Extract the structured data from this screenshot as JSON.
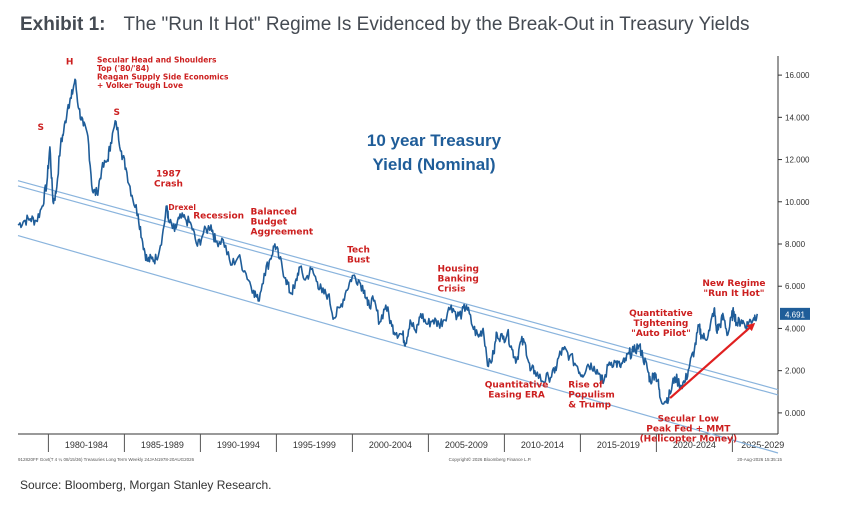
{
  "header": {
    "exhibit_label": "Exhibit 1:",
    "title": "The \"Run It Hot\" Regime Is Evidenced by the Break-Out in Treasury Yields"
  },
  "source_note": "Source: Bloomberg, Morgan Stanley Research.",
  "colors": {
    "series": "#1f5d99",
    "channel": "#8ab4dd",
    "annotation": "#cc1f1f",
    "arrow": "#e02020",
    "inner_title": "#1f5d99",
    "badge": "#1f5d99"
  },
  "chart_data": {
    "type": "line",
    "title": "10 year Treasury Yield (Nominal)",
    "title_lines": [
      "10 year Treasury",
      "Yield (Nominal)"
    ],
    "xlim": [
      1978.0,
      2028.0
    ],
    "ylim": [
      -1.0,
      17.0
    ],
    "y_ticks": [
      0,
      2,
      4,
      6,
      8,
      10,
      12,
      14,
      16
    ],
    "y_tick_labels": [
      "0.000",
      "2.000",
      "4.000",
      "6.000",
      "8.000",
      "10.000",
      "12.000",
      "14.000",
      "16.000"
    ],
    "x_tick_labels": [
      "1980-1984",
      "1985-1989",
      "1990-1994",
      "1995-1999",
      "2000-2004",
      "2005-2009",
      "2010-2014",
      "2015-2019",
      "2020-2024",
      "2025-2029"
    ],
    "x_tick_centers": [
      1982.5,
      1987.5,
      1992.5,
      1997.5,
      2002.5,
      2007.5,
      2012.5,
      2017.5,
      2022.5,
      2027.0
    ],
    "x_period_bounds": [
      1980,
      1985,
      1990,
      1995,
      2000,
      2005,
      2010,
      2015,
      2020,
      2025
    ],
    "last_value": 4.691,
    "last_value_label": "4.691",
    "series": [
      {
        "points": [
          [
            1978.0,
            8.9
          ],
          [
            1978.4,
            9.1
          ],
          [
            1978.8,
            9.2
          ],
          [
            1979.2,
            9.1
          ],
          [
            1979.6,
            9.8
          ],
          [
            1979.9,
            10.9
          ],
          [
            1980.1,
            12.6
          ],
          [
            1980.3,
            10.0
          ],
          [
            1980.5,
            10.4
          ],
          [
            1980.8,
            12.7
          ],
          [
            1981.0,
            13.3
          ],
          [
            1981.3,
            14.6
          ],
          [
            1981.5,
            14.9
          ],
          [
            1981.75,
            15.8
          ],
          [
            1982.0,
            14.4
          ],
          [
            1982.3,
            13.6
          ],
          [
            1982.6,
            13.1
          ],
          [
            1982.9,
            10.5
          ],
          [
            1983.2,
            10.4
          ],
          [
            1983.5,
            11.5
          ],
          [
            1983.9,
            12.0
          ],
          [
            1984.1,
            12.8
          ],
          [
            1984.45,
            13.8
          ],
          [
            1984.8,
            12.4
          ],
          [
            1985.1,
            11.6
          ],
          [
            1985.5,
            10.3
          ],
          [
            1985.9,
            9.4
          ],
          [
            1986.2,
            8.1
          ],
          [
            1986.5,
            7.2
          ],
          [
            1986.8,
            7.3
          ],
          [
            1987.1,
            7.3
          ],
          [
            1987.5,
            8.4
          ],
          [
            1987.8,
            9.8
          ],
          [
            1987.9,
            9.1
          ],
          [
            1988.3,
            8.6
          ],
          [
            1988.6,
            9.2
          ],
          [
            1989.0,
            9.2
          ],
          [
            1989.4,
            8.9
          ],
          [
            1989.8,
            7.9
          ],
          [
            1990.2,
            8.5
          ],
          [
            1990.7,
            8.9
          ],
          [
            1991.0,
            8.1
          ],
          [
            1991.5,
            8.2
          ],
          [
            1992.0,
            7.0
          ],
          [
            1992.5,
            7.4
          ],
          [
            1993.0,
            6.6
          ],
          [
            1993.5,
            5.8
          ],
          [
            1993.8,
            5.3
          ],
          [
            1994.2,
            6.6
          ],
          [
            1994.6,
            7.3
          ],
          [
            1994.9,
            8.0
          ],
          [
            1995.2,
            7.3
          ],
          [
            1995.6,
            6.4
          ],
          [
            1995.9,
            5.7
          ],
          [
            1996.2,
            5.9
          ],
          [
            1996.5,
            6.9
          ],
          [
            1996.9,
            6.3
          ],
          [
            1997.3,
            6.8
          ],
          [
            1997.7,
            6.2
          ],
          [
            1998.0,
            5.7
          ],
          [
            1998.4,
            5.6
          ],
          [
            1998.8,
            4.5
          ],
          [
            1999.2,
            5.0
          ],
          [
            1999.6,
            5.8
          ],
          [
            2000.0,
            6.5
          ],
          [
            2000.4,
            6.3
          ],
          [
            2000.8,
            5.8
          ],
          [
            2001.0,
            5.1
          ],
          [
            2001.4,
            5.3
          ],
          [
            2001.8,
            4.3
          ],
          [
            2002.2,
            5.1
          ],
          [
            2002.6,
            4.1
          ],
          [
            2002.9,
            3.8
          ],
          [
            2003.3,
            3.7
          ],
          [
            2003.5,
            3.3
          ],
          [
            2003.8,
            4.4
          ],
          [
            2004.2,
            3.8
          ],
          [
            2004.5,
            4.7
          ],
          [
            2004.9,
            4.2
          ],
          [
            2005.3,
            4.4
          ],
          [
            2005.7,
            4.2
          ],
          [
            2006.0,
            4.4
          ],
          [
            2006.5,
            5.1
          ],
          [
            2006.9,
            4.6
          ],
          [
            2007.2,
            4.7
          ],
          [
            2007.5,
            5.1
          ],
          [
            2007.9,
            4.1
          ],
          [
            2008.3,
            3.6
          ],
          [
            2008.6,
            4.0
          ],
          [
            2008.95,
            2.2
          ],
          [
            2009.3,
            2.8
          ],
          [
            2009.5,
            3.8
          ],
          [
            2009.9,
            3.5
          ],
          [
            2010.2,
            3.8
          ],
          [
            2010.5,
            3.0
          ],
          [
            2010.8,
            2.5
          ],
          [
            2011.1,
            3.4
          ],
          [
            2011.4,
            3.2
          ],
          [
            2011.7,
            2.0
          ],
          [
            2012.0,
            2.0
          ],
          [
            2012.5,
            1.5
          ],
          [
            2012.9,
            1.7
          ],
          [
            2013.3,
            1.9
          ],
          [
            2013.6,
            2.7
          ],
          [
            2013.9,
            3.0
          ],
          [
            2014.3,
            2.7
          ],
          [
            2014.8,
            2.2
          ],
          [
            2015.1,
            1.8
          ],
          [
            2015.5,
            2.3
          ],
          [
            2015.9,
            2.2
          ],
          [
            2016.3,
            1.8
          ],
          [
            2016.5,
            1.4
          ],
          [
            2016.9,
            2.4
          ],
          [
            2017.3,
            2.4
          ],
          [
            2017.6,
            2.2
          ],
          [
            2017.9,
            2.4
          ],
          [
            2018.2,
            2.8
          ],
          [
            2018.5,
            2.9
          ],
          [
            2018.85,
            3.2
          ],
          [
            2019.1,
            2.7
          ],
          [
            2019.4,
            2.1
          ],
          [
            2019.6,
            1.5
          ],
          [
            2019.9,
            1.9
          ],
          [
            2020.1,
            1.5
          ],
          [
            2020.25,
            0.7
          ],
          [
            2020.6,
            0.55
          ],
          [
            2020.9,
            0.9
          ],
          [
            2021.2,
            1.7
          ],
          [
            2021.6,
            1.3
          ],
          [
            2021.9,
            1.5
          ],
          [
            2022.2,
            2.3
          ],
          [
            2022.5,
            3.0
          ],
          [
            2022.8,
            4.1
          ],
          [
            2022.95,
            3.7
          ],
          [
            2023.2,
            3.5
          ],
          [
            2023.5,
            3.9
          ],
          [
            2023.8,
            4.95
          ],
          [
            2023.95,
            3.9
          ],
          [
            2024.2,
            4.2
          ],
          [
            2024.4,
            4.6
          ],
          [
            2024.7,
            3.7
          ],
          [
            2024.95,
            4.55
          ],
          [
            2025.1,
            4.8
          ],
          [
            2025.3,
            4.2
          ],
          [
            2025.6,
            4.4
          ],
          [
            2025.9,
            4.1
          ],
          [
            2026.1,
            4.3
          ],
          [
            2026.4,
            4.5
          ],
          [
            2026.63,
            4.691
          ]
        ]
      }
    ],
    "channels": [
      {
        "upper_a": [
          1978.0,
          11.0
        ],
        "upper_b": [
          2028.0,
          1.1
        ],
        "lower_a": [
          1978.0,
          10.75
        ],
        "lower_b": [
          2028.0,
          0.85
        ]
      },
      {
        "line_a": [
          1978.0,
          8.4
        ],
        "line_b": [
          2028.0,
          -1.9
        ]
      }
    ],
    "arrow": {
      "from": [
        2020.9,
        0.7
      ],
      "to": [
        2026.4,
        4.2
      ]
    },
    "annotations": [
      {
        "key": "s1",
        "lines": [
          "S"
        ],
        "x": 1979.5,
        "y": 13.4,
        "anchor": "middle"
      },
      {
        "key": "h",
        "lines": [
          "H"
        ],
        "x": 1981.4,
        "y": 16.5,
        "anchor": "middle"
      },
      {
        "key": "s2",
        "lines": [
          "S"
        ],
        "x": 1984.5,
        "y": 14.1,
        "anchor": "middle"
      },
      {
        "key": "secular",
        "lines": [
          "Secular Head and Shoulders",
          "Top ('80/'84)",
          "Reagan Supply Side Economics",
          "+ Volker Tough Love"
        ],
        "x": 1983.2,
        "y": 16.6,
        "anchor": "start",
        "small": true
      },
      {
        "key": "crash",
        "lines": [
          "1987",
          "Crash"
        ],
        "x": 1987.9,
        "y": 11.2,
        "anchor": "middle"
      },
      {
        "key": "drexel",
        "lines": [
          "Drexel"
        ],
        "x": 1988.8,
        "y": 9.6,
        "anchor": "middle",
        "small": true
      },
      {
        "key": "recession",
        "lines": [
          "Recession"
        ],
        "x": 1991.2,
        "y": 9.2,
        "anchor": "middle"
      },
      {
        "key": "budget",
        "lines": [
          "Balanced",
          "Budget",
          "Aggreement"
        ],
        "x": 1993.3,
        "y": 9.4,
        "anchor": "start"
      },
      {
        "key": "techbust",
        "lines": [
          "Tech",
          "Bust"
        ],
        "x": 2000.4,
        "y": 7.6,
        "anchor": "middle"
      },
      {
        "key": "housing",
        "lines": [
          "Housing",
          "Banking",
          "Crisis"
        ],
        "x": 2005.6,
        "y": 6.7,
        "anchor": "start"
      },
      {
        "key": "qe",
        "lines": [
          "Quantitative",
          "Easing ERA"
        ],
        "x": 2010.8,
        "y": 1.2,
        "anchor": "middle"
      },
      {
        "key": "populism",
        "lines": [
          "Rise of",
          "Populism",
          "& Trump"
        ],
        "x": 2014.2,
        "y": 1.2,
        "anchor": "start"
      },
      {
        "key": "qt",
        "lines": [
          "Quantitative",
          "Tightening",
          "\"Auto Pilot\""
        ],
        "x": 2020.3,
        "y": 4.6,
        "anchor": "middle"
      },
      {
        "key": "secularlow",
        "lines": [
          "Secular Low",
          "Peak Fed + MMT",
          "(Helicopter Money)"
        ],
        "x": 2022.1,
        "y": -0.4,
        "anchor": "middle"
      },
      {
        "key": "newregime",
        "lines": [
          "New Regime",
          "\"Run It Hot\""
        ],
        "x": 2025.1,
        "y": 6.0,
        "anchor": "middle"
      }
    ],
    "footer_left": "912820FF Govt(T 4 ¼ 08/15/36) Treasuries Long Term Weekly 24JAN1978-20AUG2026",
    "footer_center": "Copyright© 2026 Bloomberg Finance L.P.",
    "footer_right": "20-Aug-2026 15:35:15"
  }
}
